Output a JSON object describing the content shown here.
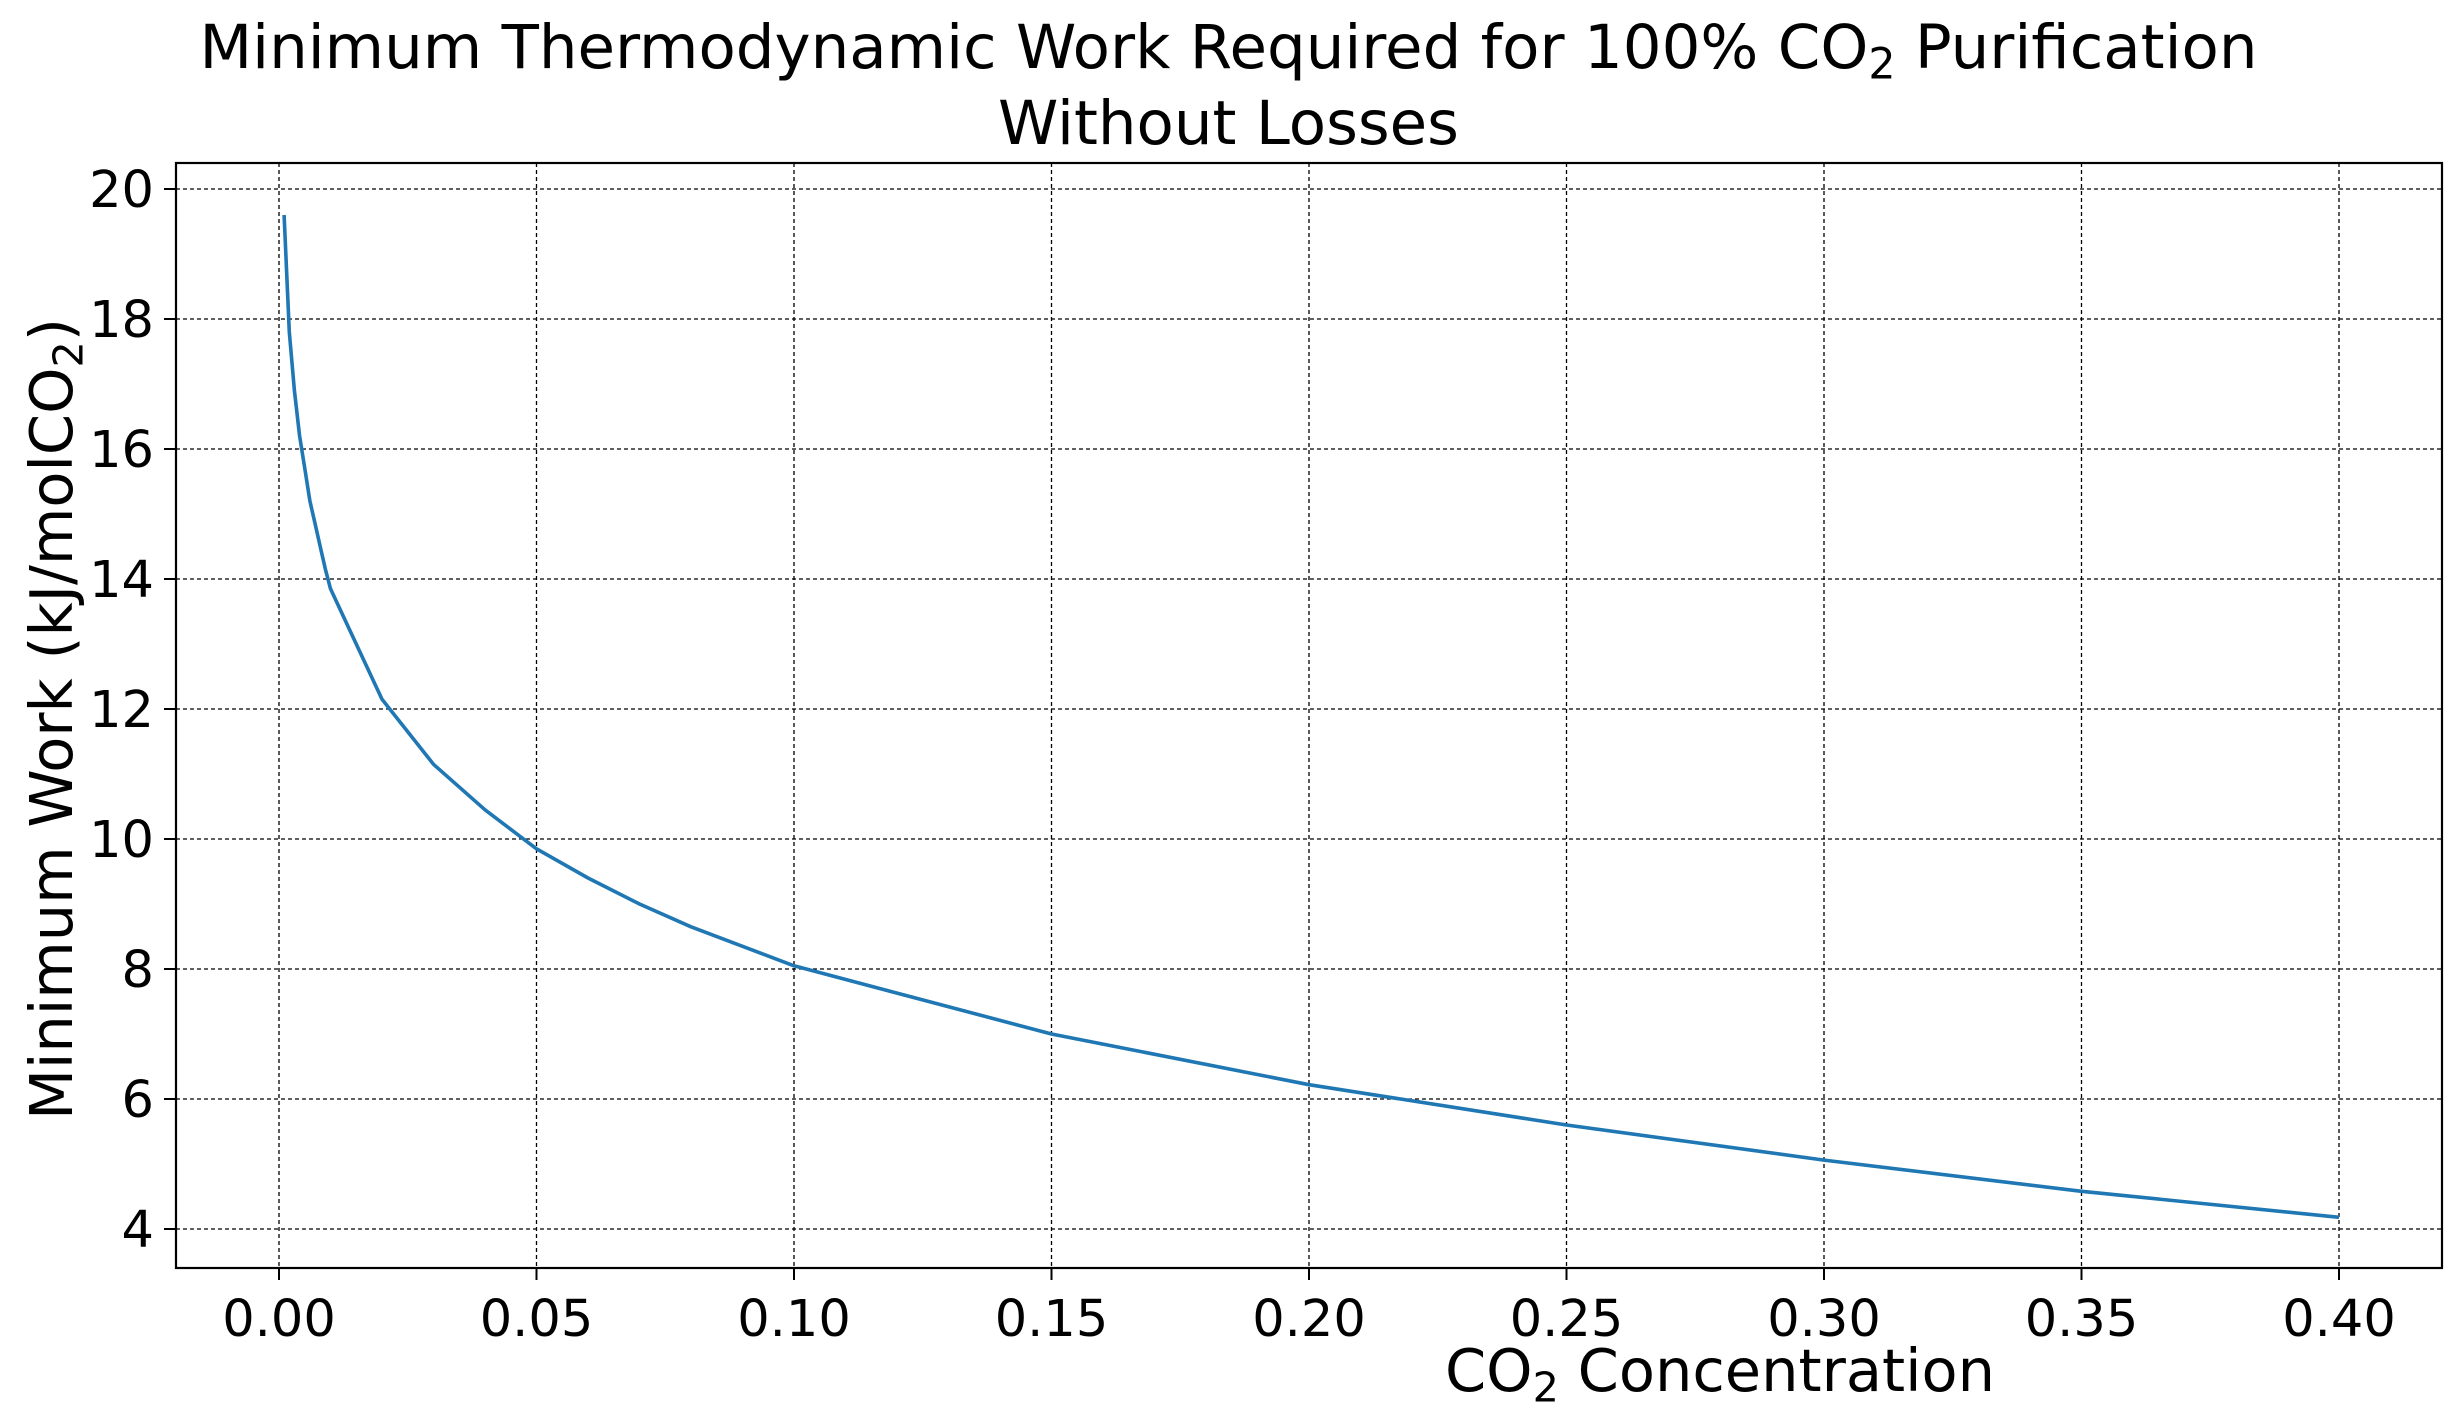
{
  "chart_data": {
    "type": "line",
    "title_line1_pre": "Minimum Thermodynamic Work Required for 100% CO",
    "title_line1_sub": "2",
    "title_line1_post": " Purification",
    "title_line2": "Without Losses",
    "xlabel_pre": "CO",
    "xlabel_sub": "2",
    "xlabel_post": " Concentration",
    "ylabel_pre": "Minimum Work (kJ/molCO",
    "ylabel_sub": "2",
    "ylabel_post": ")",
    "xlim": [
      -0.02,
      0.42
    ],
    "ylim": [
      3.4,
      20.4
    ],
    "xticks": [
      0.0,
      0.05,
      0.1,
      0.15,
      0.2,
      0.25,
      0.3,
      0.35,
      0.4
    ],
    "xtick_labels": [
      "0.00",
      "0.05",
      "0.10",
      "0.15",
      "0.20",
      "0.25",
      "0.30",
      "0.35",
      "0.40"
    ],
    "yticks": [
      4,
      6,
      8,
      10,
      12,
      14,
      16,
      18,
      20
    ],
    "ytick_labels": [
      "4",
      "6",
      "8",
      "10",
      "12",
      "14",
      "16",
      "18",
      "20"
    ],
    "grid": true,
    "line_color": "#1f77b4",
    "series": [
      {
        "x": [
          0.001,
          0.002,
          0.003,
          0.004,
          0.005,
          0.006,
          0.007,
          0.008,
          0.009,
          0.01,
          0.02,
          0.03,
          0.04,
          0.05,
          0.06,
          0.07,
          0.08,
          0.09,
          0.1,
          0.15,
          0.2,
          0.25,
          0.3,
          0.35,
          0.4
        ],
        "y": [
          19.6,
          17.8,
          16.9,
          16.2,
          15.7,
          15.2,
          14.85,
          14.5,
          14.15,
          13.85,
          12.15,
          11.15,
          10.45,
          9.85,
          9.4,
          9.0,
          8.65,
          8.35,
          8.05,
          7.0,
          6.22,
          5.6,
          5.06,
          4.58,
          4.18
        ]
      }
    ]
  }
}
